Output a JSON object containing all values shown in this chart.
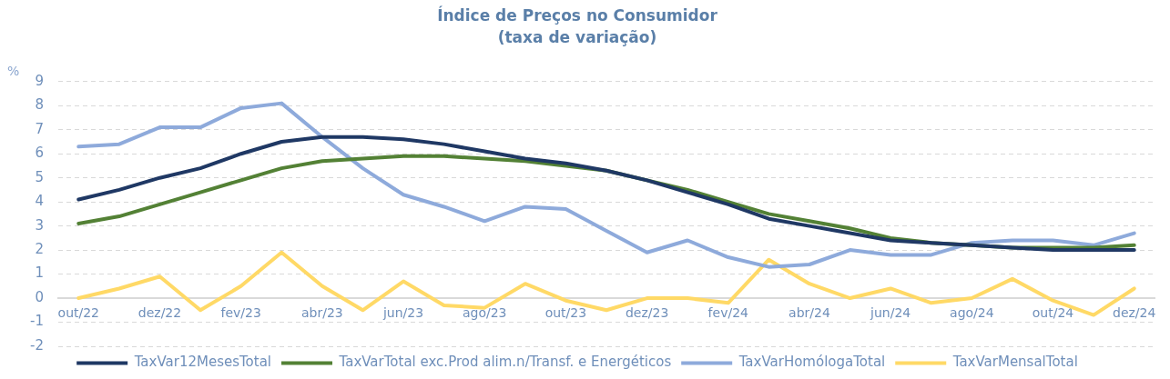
{
  "chart_data": {
    "type": "line",
    "title": "Índice de Preços no Consumidor",
    "subtitle": "(taxa de variação)",
    "ylabel": "%",
    "categories": [
      "out/22",
      null,
      "dez/22",
      null,
      "fev/23",
      null,
      "abr/23",
      null,
      "jun/23",
      null,
      "ago/23",
      null,
      "out/23",
      null,
      "dez/23",
      null,
      "fev/24",
      null,
      "abr/24",
      null,
      "jun/24",
      null,
      "ago/24",
      null,
      "out/24",
      null,
      "dez/24"
    ],
    "series": [
      {
        "name": "TaxVar12MesesTotal",
        "color": "#1f3864",
        "values": [
          4.1,
          4.5,
          5.0,
          5.4,
          6.0,
          6.5,
          6.7,
          6.7,
          6.6,
          6.4,
          6.1,
          5.8,
          5.6,
          5.3,
          4.9,
          4.4,
          3.9,
          3.3,
          3.0,
          2.7,
          2.4,
          2.3,
          2.2,
          2.1,
          2.0,
          2.0,
          2.0
        ]
      },
      {
        "name": "TaxVarTotal exc.Prod alim.n/Transf. e Energéticos",
        "color": "#538135",
        "values": [
          3.1,
          3.4,
          3.9,
          4.4,
          4.9,
          5.4,
          5.7,
          5.8,
          5.9,
          5.9,
          5.8,
          5.7,
          5.5,
          5.3,
          4.9,
          4.5,
          4.0,
          3.5,
          3.2,
          2.9,
          2.5,
          2.3,
          2.2,
          2.1,
          2.1,
          2.1,
          2.2
        ]
      },
      {
        "name": "TaxVarHomólogaTotal",
        "color": "#8eaadb",
        "values": [
          6.3,
          6.4,
          7.1,
          7.1,
          7.9,
          8.1,
          6.7,
          5.4,
          4.3,
          3.8,
          3.2,
          3.8,
          3.7,
          2.8,
          1.9,
          2.4,
          1.7,
          1.3,
          1.4,
          2.0,
          1.8,
          1.8,
          2.3,
          2.4,
          2.4,
          2.2,
          2.7
        ]
      },
      {
        "name": "TaxVarMensalTotal",
        "color": "#ffd966",
        "values": [
          0.0,
          0.4,
          0.9,
          -0.5,
          0.5,
          1.9,
          0.5,
          -0.5,
          0.7,
          -0.3,
          -0.4,
          0.6,
          -0.1,
          -0.5,
          0.0,
          0.0,
          -0.2,
          1.6,
          0.6,
          0.0,
          0.4,
          -0.2,
          0.0,
          0.8,
          -0.1,
          -0.7,
          0.4
        ]
      }
    ],
    "ylim": [
      -2,
      9
    ],
    "yticks": [
      -2,
      -1,
      0,
      1,
      2,
      3,
      4,
      5,
      6,
      7,
      8,
      9
    ],
    "grid": "y",
    "legend": "bottom"
  }
}
